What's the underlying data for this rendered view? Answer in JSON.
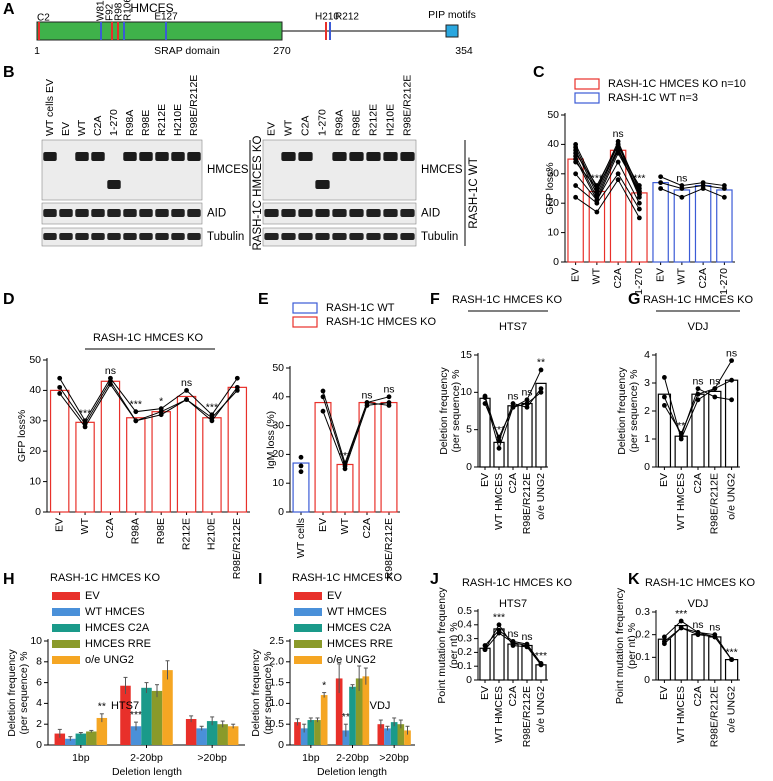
{
  "protein": {
    "panel": "A",
    "title": "HMCES",
    "sites": [
      "C2",
      "W81",
      "F92",
      "R98",
      "R106",
      "E127",
      "H210",
      "R212"
    ],
    "domain": "SRAP domain",
    "motif": "PIP motifs",
    "start": 1,
    "domain_end": 270,
    "end": 354
  },
  "western_blot": {
    "panel": "B",
    "blots": [
      {
        "lanes": [
          "WT cells EV",
          "EV",
          "WT",
          "C2A",
          "1-270",
          "R98A",
          "R98E",
          "R212E",
          "H210E",
          "R98E/R212E"
        ],
        "bands": [
          "HMCES",
          "AID",
          "Tubulin"
        ],
        "side_label": "RASH-1C HMCES KO"
      },
      {
        "lanes": [
          "EV",
          "WT",
          "C2A",
          "1-270",
          "R98A",
          "R98E",
          "R212E",
          "H210E",
          "R98E/R212E"
        ],
        "bands": [
          "HMCES",
          "AID",
          "Tubulin"
        ],
        "side_label": "RASH-1C WT"
      }
    ]
  },
  "chart_data": [
    {
      "type": "bar",
      "panel": "C",
      "ylabel": "GFP loss%",
      "ylim": [
        0,
        50
      ],
      "yticks": [
        0,
        10,
        20,
        30,
        40,
        50
      ],
      "categories": [
        "EV",
        "WT",
        "C2A",
        "1-270",
        "EV",
        "WT",
        "C2A",
        "1-270"
      ],
      "legend": true,
      "series": [
        {
          "name": "RASH-1C HMCES KO n=10",
          "color": "#e8302a",
          "values": [
            35,
            24,
            38,
            23.5,
            null,
            null,
            null,
            null
          ],
          "replicates": [
            [
              40,
              25,
              41,
              24,
              null,
              null,
              null,
              null
            ],
            [
              39,
              24,
              40,
              23,
              null,
              null,
              null,
              null
            ],
            [
              38,
              23,
              39,
              22,
              null,
              null,
              null,
              null
            ],
            [
              37,
              26,
              40,
              25,
              null,
              null,
              null,
              null
            ],
            [
              36,
              22,
              38,
              23,
              null,
              null,
              null,
              null
            ],
            [
              35,
              21,
              37,
              24,
              null,
              null,
              null,
              null
            ],
            [
              34,
              25,
              38,
              26,
              null,
              null,
              null,
              null
            ],
            [
              26,
              20,
              30,
              18,
              null,
              null,
              null,
              null
            ],
            [
              22,
              17,
              28,
              15,
              null,
              null,
              null,
              null
            ],
            [
              30,
              21,
              34,
              20,
              null,
              null,
              null,
              null
            ]
          ],
          "significance": [
            null,
            "***",
            "ns",
            "***",
            null,
            null,
            null,
            null
          ]
        },
        {
          "name": "RASH-1C WT  n=3",
          "color": "#3b5bd6",
          "values": [
            null,
            null,
            null,
            null,
            27,
            24.5,
            26,
            24.5
          ],
          "replicates": [
            [
              null,
              null,
              null,
              null,
              29,
              26,
              27,
              26
            ],
            [
              null,
              null,
              null,
              null,
              27,
              25,
              26,
              25
            ],
            [
              null,
              null,
              null,
              null,
              25,
              22,
              25,
              22
            ]
          ],
          "significance": [
            null,
            null,
            null,
            null,
            null,
            "ns",
            null,
            null
          ]
        }
      ]
    },
    {
      "type": "bar",
      "panel": "D",
      "title": "RASH-1C HMCES KO",
      "ylabel": "GFP loss%",
      "ylim": [
        0,
        50
      ],
      "yticks": [
        0,
        10,
        20,
        30,
        40,
        50
      ],
      "categories": [
        "EV",
        "WT",
        "C2A",
        "R98A",
        "R98E",
        "R212E",
        "H210E",
        "R98E/R212E"
      ],
      "series": [
        {
          "color": "#e8302a",
          "values": [
            40,
            29.5,
            43,
            31,
            33,
            38,
            31,
            41
          ],
          "replicates": [
            [
              44,
              30,
              44,
              33,
              34,
              40,
              32,
              44
            ],
            [
              41,
              29,
              43,
              30,
              32,
              37,
              30,
              41
            ],
            [
              39,
              28,
              42,
              30,
              33,
              37,
              31,
              40
            ]
          ],
          "significance": [
            null,
            "***",
            "ns",
            "***",
            "*",
            "ns",
            "***",
            null
          ]
        }
      ]
    },
    {
      "type": "bar",
      "panel": "E",
      "ylabel": "IgM loss (%)",
      "ylim": [
        0,
        50
      ],
      "yticks": [
        0,
        10,
        20,
        30,
        40,
        50
      ],
      "legend": true,
      "categories": [
        "WT cells",
        "EV",
        "WT",
        "C2A",
        "R98E/R212E"
      ],
      "series": [
        {
          "name": "RASH-1C WT",
          "color": "#3b5bd6",
          "values": [
            17,
            null,
            null,
            null,
            null
          ],
          "replicates": [
            [
              19,
              null,
              null,
              null,
              null
            ],
            [
              16,
              null,
              null,
              null,
              null
            ],
            [
              14,
              null,
              null,
              null,
              null
            ]
          ]
        },
        {
          "name": "RASH-1C HMCES KO",
          "color": "#e8302a",
          "values": [
            null,
            38,
            16.5,
            38,
            38
          ],
          "replicates": [
            [
              null,
              42,
              17,
              38,
              40
            ],
            [
              null,
              40,
              16,
              38,
              37
            ],
            [
              null,
              35,
              15,
              37,
              38
            ]
          ],
          "significance": [
            null,
            null,
            "***",
            "ns",
            "ns"
          ]
        }
      ]
    },
    {
      "type": "bar",
      "panel": "F",
      "title": "RASH-1C HMCES KO",
      "subtitle": "HTS7",
      "ylabel": [
        "Deletion frequency",
        "(per sequence) %"
      ],
      "ylim": [
        0,
        15
      ],
      "yticks": [
        0,
        5,
        10,
        15
      ],
      "categories": [
        "EV",
        "WT HMCES",
        "C2A",
        "R98E/R212E",
        "o/e UNG2"
      ],
      "series": [
        {
          "color": "#000000",
          "values": [
            9.2,
            3.3,
            8.2,
            8.5,
            11.2
          ],
          "replicates": [
            [
              9.3,
              2.5,
              8,
              9,
              13
            ],
            [
              9.5,
              3.5,
              8.5,
              8,
              10.5
            ],
            [
              8.5,
              4,
              8,
              8.5,
              10
            ]
          ],
          "significance": [
            null,
            "***",
            "ns",
            "ns",
            "**"
          ]
        }
      ]
    },
    {
      "type": "bar",
      "panel": "G",
      "title": "RASH-1C HMCES KO",
      "subtitle": "VDJ",
      "ylabel": [
        "Deletion frequency",
        "(per sequence) %"
      ],
      "ylim": [
        0,
        4
      ],
      "yticks": [
        0,
        1,
        2,
        3,
        4
      ],
      "categories": [
        "EV",
        "WT HMCES",
        "C2A",
        "R98E/R212E",
        "o/e UNG2"
      ],
      "series": [
        {
          "color": "#000000",
          "values": [
            2.6,
            1.1,
            2.6,
            2.7,
            3.1
          ],
          "replicates": [
            [
              3.2,
              1.0,
              2.4,
              2.8,
              3.1
            ],
            [
              2.5,
              1.1,
              2.8,
              2.5,
              2.4
            ],
            [
              2.2,
              1.2,
              2.6,
              2.8,
              3.8
            ]
          ],
          "significance": [
            null,
            "**",
            "ns",
            "ns",
            "ns"
          ]
        }
      ]
    },
    {
      "type": "grouped_bar",
      "panel": "H",
      "legend_title": "RASH-1C HMCES KO",
      "annotation": "HTS7",
      "xlabel": "Deletion length",
      "ylabel": [
        "Deletion frequency",
        "(per sequence) %"
      ],
      "ylim": [
        0,
        10
      ],
      "yticks": [
        0,
        2,
        4,
        6,
        8,
        10
      ],
      "legend": true,
      "categories": [
        "1bp",
        "2-20bp",
        ">20bp"
      ],
      "series": [
        {
          "name": "EV",
          "color": "#e8302a",
          "values": [
            1.1,
            5.7,
            2.5
          ],
          "errors": [
            0.4,
            0.8,
            0.3
          ]
        },
        {
          "name": "WT HMCES",
          "color": "#4a90d9",
          "values": [
            0.6,
            1.8,
            1.6
          ],
          "errors": [
            0.2,
            0.4,
            0.2
          ],
          "significance": [
            null,
            "***",
            null
          ]
        },
        {
          "name": "HMCES C2A",
          "color": "#1a9a8a",
          "values": [
            1.1,
            5.5,
            2.3
          ],
          "errors": [
            0.1,
            0.5,
            0.4
          ]
        },
        {
          "name": "HMCES RRE",
          "color": "#8a9a2a",
          "values": [
            1.3,
            5.2,
            2.0
          ],
          "errors": [
            0.1,
            0.6,
            0.3
          ]
        },
        {
          "name": "o/e UNG2",
          "color": "#f5a623",
          "values": [
            2.6,
            7.2,
            1.8
          ],
          "errors": [
            0.4,
            0.9,
            0.2
          ],
          "significance": [
            "**",
            null,
            null
          ]
        }
      ]
    },
    {
      "type": "grouped_bar",
      "panel": "I",
      "legend_title": "RASH-1C HMCES KO",
      "annotation": "VDJ",
      "xlabel": "Deletion length",
      "ylabel": [
        "Deletion frequency",
        "(per sequence) %"
      ],
      "ylim": [
        0,
        2.5
      ],
      "yticks": [
        0,
        0.5,
        {
          "value": 1,
          "label": "1.0"
        },
        1.5,
        {
          "value": 2,
          "label": "2.0"
        },
        2.5
      ],
      "legend": true,
      "categories": [
        "1bp",
        "2-20bp",
        ">20bp"
      ],
      "series": [
        {
          "name": "EV",
          "color": "#e8302a",
          "values": [
            0.55,
            1.6,
            0.5
          ],
          "errors": [
            0.08,
            0.35,
            0.1
          ]
        },
        {
          "name": "WT HMCES",
          "color": "#4a90d9",
          "values": [
            0.4,
            0.35,
            0.4
          ],
          "errors": [
            0.1,
            0.15,
            0.05
          ],
          "significance": [
            null,
            "**",
            null
          ]
        },
        {
          "name": "HMCES C2A",
          "color": "#1a9a8a",
          "values": [
            0.6,
            1.4,
            0.55
          ],
          "errors": [
            0.05,
            0.05,
            0.1
          ]
        },
        {
          "name": "HMCES RRE",
          "color": "#8a9a2a",
          "values": [
            0.6,
            1.6,
            0.5
          ],
          "errors": [
            0.05,
            0.3,
            0.1
          ]
        },
        {
          "name": "o/e UNG2",
          "color": "#f5a623",
          "values": [
            1.2,
            1.65,
            0.35
          ],
          "errors": [
            0.06,
            0.2,
            0.1
          ],
          "significance": [
            "*",
            null,
            null
          ]
        }
      ]
    },
    {
      "type": "bar",
      "panel": "J",
      "title": "RASH-1C HMCES KO",
      "subtitle": "HTS7",
      "ylabel": [
        "Point mutation frequency",
        "(per nt) %"
      ],
      "ylim": [
        0,
        0.5
      ],
      "yticks": [
        0,
        0.1,
        0.2,
        0.3,
        0.4,
        0.5
      ],
      "categories": [
        "EV",
        "WT HMCES",
        "C2A",
        "R98E/R212E",
        "o/e UNG2"
      ],
      "series": [
        {
          "color": "#000000",
          "values": [
            0.23,
            0.37,
            0.26,
            0.25,
            0.11
          ],
          "replicates": [
            [
              0.22,
              0.4,
              0.25,
              0.24,
              0.11
            ],
            [
              0.25,
              0.36,
              0.28,
              0.26,
              0.12
            ],
            [
              0.22,
              0.34,
              0.27,
              0.25,
              0.11
            ]
          ],
          "significance": [
            null,
            "***",
            "ns",
            "ns",
            "***"
          ]
        }
      ]
    },
    {
      "type": "bar",
      "panel": "K",
      "title": "RASH-1C HMCES KO",
      "subtitle": "VDJ",
      "ylabel": [
        "Point mutation frequency",
        "(per nt) %"
      ],
      "ylim": [
        0,
        0.3
      ],
      "yticks": [
        0,
        0.1,
        0.2,
        0.3
      ],
      "categories": [
        "EV",
        "WT HMCES",
        "C2A",
        "R98E/R212E",
        "o/e UNG2"
      ],
      "series": [
        {
          "color": "#000000",
          "values": [
            0.18,
            0.24,
            0.2,
            0.19,
            0.09
          ],
          "replicates": [
            [
              0.19,
              0.26,
              0.21,
              0.2,
              0.09
            ],
            [
              0.17,
              0.23,
              0.2,
              0.19,
              0.09
            ],
            [
              0.16,
              0.23,
              0.21,
              0.19,
              0.09
            ]
          ],
          "significance": [
            null,
            "***",
            "ns",
            "ns",
            "***"
          ]
        }
      ]
    }
  ]
}
